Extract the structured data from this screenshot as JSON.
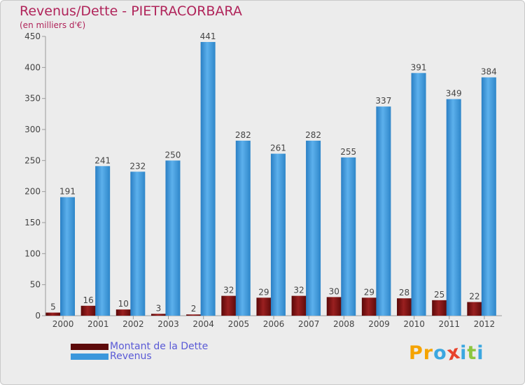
{
  "header": {
    "title": "Revenus/Dette - PIETRACORBARA",
    "subtitle": "(en milliers d'€)"
  },
  "colors": {
    "background": "#ececec",
    "debt": "#7a1010",
    "revenue": "#3b97dc",
    "title": "#b0245a",
    "legend_text": "#5a5ad6"
  },
  "legend": {
    "items": [
      {
        "label": "Montant de la Dette",
        "color": "#5c0a0a"
      },
      {
        "label": "Revenus",
        "color": "#3b97dc"
      }
    ]
  },
  "logo": {
    "text": "Proxiti",
    "letters": [
      {
        "ch": "P",
        "color": "#f5a300"
      },
      {
        "ch": "r",
        "color": "#f5a300"
      },
      {
        "ch": "o",
        "color": "#3ba7e0"
      },
      {
        "ch": "x",
        "color": "#e8432c"
      },
      {
        "ch": "i",
        "color": "#3ba7e0"
      },
      {
        "ch": "t",
        "color": "#8cc63f"
      },
      {
        "ch": "i",
        "color": "#3ba7e0"
      }
    ]
  },
  "chart_data": {
    "type": "bar",
    "title": "Revenus/Dette - PIETRACORBARA",
    "subtitle": "(en milliers d'€)",
    "xlabel": "",
    "ylabel": "",
    "categories": [
      "2000",
      "2001",
      "2002",
      "2003",
      "2004",
      "2005",
      "2006",
      "2007",
      "2008",
      "2009",
      "2010",
      "2011",
      "2012"
    ],
    "series": [
      {
        "name": "Montant de la Dette",
        "values": [
          5,
          16,
          10,
          3,
          2,
          32,
          29,
          32,
          30,
          29,
          28,
          25,
          22
        ]
      },
      {
        "name": "Revenus",
        "values": [
          191,
          241,
          232,
          250,
          441,
          282,
          261,
          282,
          255,
          337,
          391,
          349,
          384
        ]
      }
    ],
    "ylim": [
      0,
      450
    ],
    "yticks": [
      0,
      50,
      100,
      150,
      200,
      250,
      300,
      350,
      400,
      450
    ],
    "grid": false,
    "legend_position": "bottom-left"
  }
}
